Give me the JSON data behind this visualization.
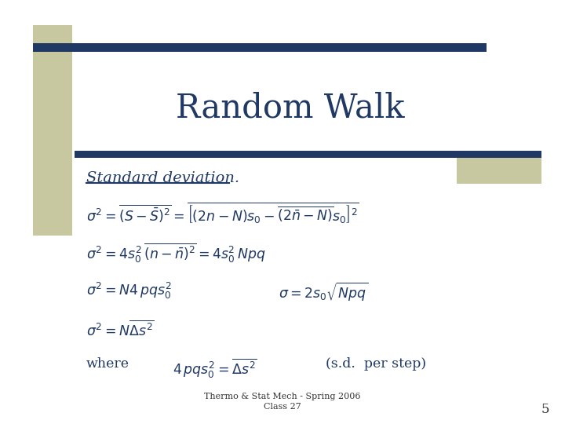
{
  "title": "Random Walk",
  "title_color": "#1F3864",
  "subtitle": "Standard deviation.",
  "subtitle_color": "#1F3864",
  "bg_color": "#FFFFFF",
  "stripe_bg": "#C8C8A0",
  "bar_color": "#1F3864",
  "footer_line1": "Thermo & Stat Mech - Spring 2006",
  "footer_line2": "Class 27",
  "page_num": "5",
  "text_color": "#1F3864",
  "eq_color": "#1F3864",
  "footer_color": "#333333"
}
